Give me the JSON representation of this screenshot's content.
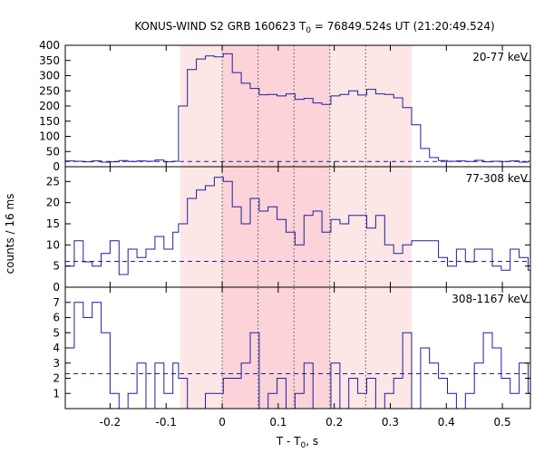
{
  "figure": {
    "title_prefix": "KONUS-WIND S2 GRB 160623 T",
    "title_sub": "0",
    "title_suffix": " = 76849.524s UT (21:20:49.524)",
    "ylabel": "counts / 16 ms",
    "xlabel_prefix": "T - T",
    "xlabel_sub": "0",
    "xlabel_suffix": ", s"
  },
  "colors": {
    "line": "#1f1f9f",
    "outer_band": "#fde6e6",
    "inner_band": "#fbd3d8",
    "dotted": "#555555",
    "axis": "#000000"
  },
  "chart_data": {
    "type": "line",
    "style": "step",
    "x_range": [
      -0.28,
      0.55
    ],
    "x_ticks": [
      -0.2,
      -0.1,
      0,
      0.1,
      0.2,
      0.3,
      0.4,
      0.5
    ],
    "x_tick_labels": [
      "-0.2",
      "-0.1",
      "0",
      "0.1",
      "0.2",
      "0.3",
      "0.4",
      "0.5"
    ],
    "outer_interval": [
      -0.075,
      0.338
    ],
    "inner_interval": [
      0.0,
      0.192
    ],
    "dotted_lines": [
      0.0,
      0.064,
      0.128,
      0.192,
      0.256
    ],
    "panels": [
      {
        "name": "20-77 keV",
        "ylim": [
          0,
          400
        ],
        "yticks": [
          0,
          50,
          100,
          150,
          200,
          250,
          300,
          350,
          400
        ],
        "background": 17,
        "x": [
          -0.28,
          -0.264,
          -0.248,
          -0.232,
          -0.216,
          -0.2,
          -0.184,
          -0.168,
          -0.152,
          -0.136,
          -0.12,
          -0.104,
          -0.088,
          -0.078,
          -0.062,
          -0.046,
          -0.03,
          -0.014,
          0.002,
          0.018,
          0.034,
          0.05,
          0.066,
          0.082,
          0.098,
          0.114,
          0.13,
          0.146,
          0.162,
          0.178,
          0.194,
          0.21,
          0.226,
          0.242,
          0.258,
          0.274,
          0.29,
          0.306,
          0.322,
          0.338,
          0.354,
          0.37,
          0.386,
          0.402,
          0.418,
          0.434,
          0.45,
          0.466,
          0.482,
          0.498,
          0.514,
          0.53,
          0.546
        ],
        "y": [
          19,
          18,
          16,
          19,
          15,
          16,
          20,
          17,
          19,
          18,
          22,
          16,
          18,
          200,
          320,
          355,
          365,
          362,
          372,
          310,
          275,
          258,
          237,
          238,
          233,
          240,
          222,
          225,
          210,
          205,
          233,
          238,
          250,
          236,
          255,
          240,
          238,
          227,
          195,
          138,
          60,
          30,
          20,
          18,
          19,
          17,
          21,
          16,
          18,
          17,
          19,
          15,
          18
        ]
      },
      {
        "name": "77-308 keV",
        "ylim": [
          0,
          28.5
        ],
        "yticks": [
          0,
          5,
          10,
          15,
          20,
          25
        ],
        "background": 6.1,
        "x": [
          -0.28,
          -0.264,
          -0.248,
          -0.232,
          -0.216,
          -0.2,
          -0.184,
          -0.168,
          -0.152,
          -0.136,
          -0.12,
          -0.104,
          -0.088,
          -0.078,
          -0.062,
          -0.046,
          -0.03,
          -0.014,
          0.002,
          0.018,
          0.034,
          0.05,
          0.066,
          0.082,
          0.098,
          0.114,
          0.13,
          0.146,
          0.162,
          0.178,
          0.194,
          0.21,
          0.226,
          0.242,
          0.258,
          0.274,
          0.29,
          0.306,
          0.322,
          0.338,
          0.354,
          0.37,
          0.386,
          0.402,
          0.418,
          0.434,
          0.45,
          0.466,
          0.482,
          0.498,
          0.514,
          0.53,
          0.546
        ],
        "y": [
          5,
          11,
          6,
          5,
          8,
          11,
          3,
          9,
          7,
          9,
          12,
          9,
          13,
          15,
          21,
          23,
          24,
          26,
          25,
          19,
          15,
          21,
          18,
          19,
          16,
          13,
          10,
          17,
          18,
          13,
          16,
          15,
          17,
          17,
          14,
          17,
          10,
          8,
          10,
          11,
          11,
          11,
          7,
          5,
          9,
          6,
          9,
          9,
          5,
          4,
          9,
          7,
          4
        ]
      },
      {
        "name": "308-1167 keV",
        "ylim": [
          0,
          8
        ],
        "yticks": [
          1,
          2,
          3,
          4,
          5,
          6,
          7
        ],
        "background": 2.3,
        "x": [
          -0.28,
          -0.264,
          -0.248,
          -0.232,
          -0.216,
          -0.2,
          -0.184,
          -0.168,
          -0.152,
          -0.136,
          -0.12,
          -0.104,
          -0.088,
          -0.078,
          -0.062,
          -0.046,
          -0.03,
          -0.014,
          0.002,
          0.018,
          0.034,
          0.05,
          0.066,
          0.082,
          0.098,
          0.114,
          0.13,
          0.146,
          0.162,
          0.178,
          0.194,
          0.21,
          0.226,
          0.242,
          0.258,
          0.274,
          0.29,
          0.306,
          0.322,
          0.338,
          0.354,
          0.37,
          0.386,
          0.402,
          0.418,
          0.434,
          0.45,
          0.466,
          0.482,
          0.498,
          0.514,
          0.53,
          0.546
        ],
        "y": [
          4,
          7,
          6,
          7,
          5,
          1,
          0,
          1,
          3,
          0,
          3,
          1,
          3,
          2,
          0,
          0,
          1,
          1,
          2,
          2,
          3,
          5,
          0,
          1,
          2,
          0,
          1,
          3,
          0,
          0,
          3,
          0,
          2,
          1,
          2,
          0,
          1,
          2,
          5,
          0,
          4,
          3,
          2,
          1,
          0,
          1,
          3,
          5,
          4,
          2,
          1,
          3,
          1
        ]
      }
    ]
  }
}
